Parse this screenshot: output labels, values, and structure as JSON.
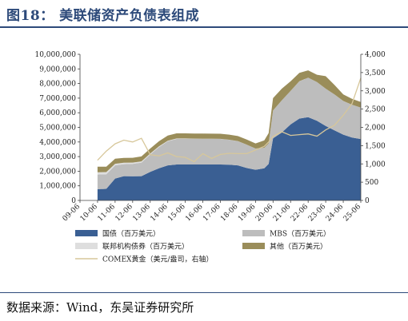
{
  "figure": {
    "title": "图18：  美联储资产负债表组成",
    "source": "数据来源：Wind，东吴证券研究所"
  },
  "colors": {
    "accent": "#2d4a7a",
    "treasury": "#3a5f93",
    "mbs": "#bdbdbd",
    "agency": "#dedede",
    "other": "#9a8d5a",
    "gold": "#d7c79a"
  },
  "chart_data": {
    "type": "area",
    "title": "",
    "xlabel": "",
    "ylabel": "",
    "y2label": "",
    "x": [
      "09-06",
      "09-12",
      "10-06",
      "10-12",
      "11-06",
      "11-12",
      "12-06",
      "12-12",
      "13-06",
      "13-12",
      "14-06",
      "14-12",
      "15-06",
      "15-12",
      "16-06",
      "16-12",
      "17-06",
      "17-12",
      "18-06",
      "18-12",
      "19-06",
      "19-12",
      "20-03",
      "20-06",
      "20-12",
      "21-06",
      "21-12",
      "22-06",
      "22-12",
      "23-06",
      "23-12",
      "24-06",
      "24-12",
      "25-06"
    ],
    "x_tick_labels": [
      "09-06",
      "10-06",
      "11-06",
      "12-06",
      "13-06",
      "14-06",
      "15-06",
      "16-06",
      "17-06",
      "18-06",
      "19-06",
      "20-06",
      "21-06",
      "22-06",
      "23-06",
      "24-06",
      "25-06"
    ],
    "ylim": [
      0,
      10000000
    ],
    "y_ticks": [
      "0",
      "1,000,000",
      "2,000,000",
      "3,000,000",
      "4,000,000",
      "5,000,000",
      "6,000,000",
      "7,000,000",
      "8,000,000",
      "9,000,000",
      "10,000,000"
    ],
    "y2lim": [
      0,
      4000
    ],
    "y2_ticks": [
      "0",
      "500",
      "1,000",
      "1,500",
      "2,000",
      "2,500",
      "3,000",
      "3,500",
      "4,000"
    ],
    "series": [
      {
        "name": "国债（百万美元）",
        "type": "stacked-area",
        "axis": "left",
        "values": [
          null,
          null,
          770000,
          790000,
          1500000,
          1660000,
          1650000,
          1660000,
          1950000,
          2200000,
          2400000,
          2460000,
          2460000,
          2460000,
          2460000,
          2460000,
          2460000,
          2450000,
          2400000,
          2220000,
          2100000,
          2200000,
          2500000,
          4250000,
          4650000,
          5200000,
          5600000,
          5700000,
          5450000,
          5100000,
          4800000,
          4500000,
          4300000,
          4200000
        ]
      },
      {
        "name": "MBS（百万美元）",
        "type": "stacked-area",
        "axis": "left",
        "values": [
          null,
          null,
          1000000,
          1000000,
          900000,
          820000,
          850000,
          930000,
          1200000,
          1450000,
          1650000,
          1750000,
          1750000,
          1750000,
          1750000,
          1750000,
          1750000,
          1700000,
          1650000,
          1600000,
          1450000,
          1400000,
          1400000,
          1900000,
          2200000,
          2300000,
          2550000,
          2700000,
          2650000,
          2550000,
          2450000,
          2300000,
          2250000,
          2150000
        ]
      },
      {
        "name": "联邦机构债券（百万美元）",
        "type": "stacked-area",
        "axis": "left",
        "values": [
          null,
          null,
          160000,
          150000,
          110000,
          100000,
          90000,
          80000,
          60000,
          50000,
          40000,
          30000,
          30000,
          20000,
          15000,
          10000,
          5000,
          3000,
          2000,
          2000,
          2000,
          2000,
          2000,
          2000,
          2000,
          2000,
          2000,
          2000,
          2000,
          2000,
          2000,
          2000,
          2000,
          2000
        ]
      },
      {
        "name": "其他（百万美元）",
        "type": "stacked-area",
        "axis": "left",
        "values": [
          null,
          null,
          380000,
          370000,
          350000,
          330000,
          330000,
          340000,
          340000,
          350000,
          350000,
          350000,
          350000,
          350000,
          350000,
          350000,
          350000,
          350000,
          350000,
          350000,
          350000,
          500000,
          700000,
          850000,
          800000,
          650000,
          580000,
          500000,
          500000,
          850000,
          650000,
          450000,
          400000,
          380000
        ]
      },
      {
        "name": "COMEX黄金（美元/盎司，右轴）",
        "type": "line",
        "axis": "right",
        "values": [
          null,
          null,
          1100,
          1350,
          1550,
          1650,
          1600,
          1700,
          1250,
          1220,
          1300,
          1200,
          1180,
          1060,
          1280,
          1150,
          1260,
          1290,
          1280,
          1280,
          1380,
          1480,
          1600,
          1750,
          1880,
          1780,
          1800,
          1820,
          1760,
          1930,
          2060,
          2330,
          2650,
          3350
        ]
      }
    ],
    "grid": false,
    "legend_position": "bottom"
  }
}
